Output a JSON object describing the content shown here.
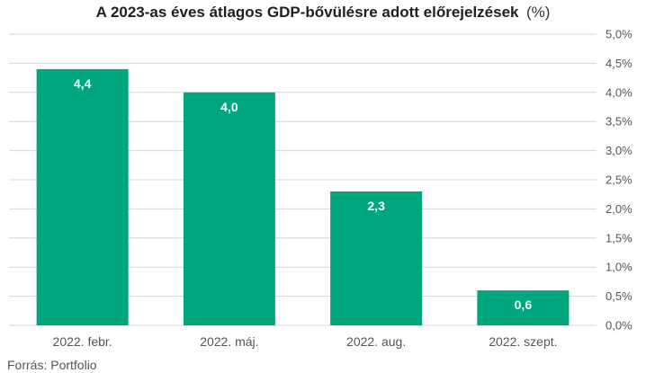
{
  "chart_data": {
    "type": "bar",
    "title": "A 2023-as éves átlagos GDP-bővülésre adott előrejelzések",
    "title_unit": "(%)",
    "categories": [
      "2022. febr.",
      "2022. máj.",
      "2022. aug.",
      "2022. szept."
    ],
    "values": [
      4.4,
      4.0,
      2.3,
      0.6
    ],
    "value_labels": [
      "4,4",
      "4,0",
      "2,3",
      "0,6"
    ],
    "ylim": [
      0,
      5
    ],
    "yticks": [
      0,
      0.5,
      1,
      1.5,
      2,
      2.5,
      3,
      3.5,
      4,
      4.5,
      5
    ],
    "ytick_labels": [
      "0,0%",
      "0,5%",
      "1,0%",
      "1,5%",
      "2,0%",
      "2,5%",
      "3,0%",
      "3,5%",
      "4,0%",
      "4,5%",
      "5,0%"
    ],
    "y_axis_side": "right",
    "grid": true,
    "bar_color": "#00a67e",
    "source": "Forrás: Portfolio"
  }
}
